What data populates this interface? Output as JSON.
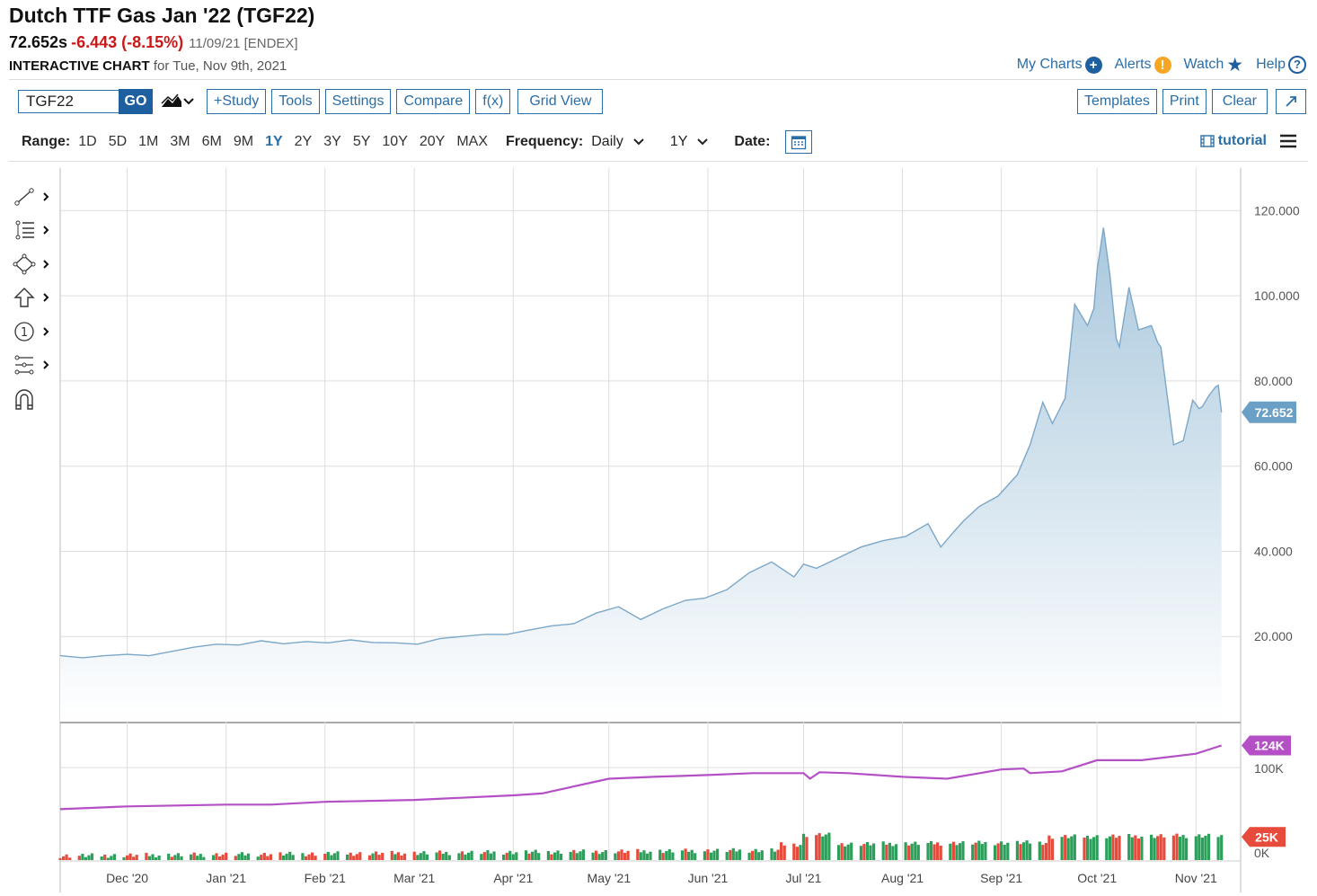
{
  "header": {
    "title": "Dutch TTF Gas Jan '22 (TGF22)",
    "last": "72.652s",
    "change": "-6.443 (-8.15%)",
    "meta": "11/09/21 [ENDEX]",
    "chart_label": "INTERACTIVE CHART",
    "for_text": "for Tue, Nov 9th, 2021"
  },
  "top_links": {
    "my_charts": "My Charts",
    "alerts": "Alerts",
    "watch": "Watch",
    "help": "Help"
  },
  "toolbar": {
    "symbol": "TGF22",
    "go": "GO",
    "study": "+Study",
    "tools": "Tools",
    "settings": "Settings",
    "compare": "Compare",
    "fx": "f(x)",
    "grid_view": "Grid View",
    "templates": "Templates",
    "print": "Print",
    "clear": "Clear"
  },
  "range_bar": {
    "range_label": "Range:",
    "ranges": [
      "1D",
      "5D",
      "1M",
      "3M",
      "6M",
      "9M",
      "1Y",
      "2Y",
      "3Y",
      "5Y",
      "10Y",
      "20Y",
      "MAX"
    ],
    "selected": "1Y",
    "frequency_label": "Frequency:",
    "frequency": "Daily",
    "period": "1Y",
    "date_label": "Date:",
    "tutorial": "tutorial"
  },
  "icons": {
    "drawing_tools": [
      "line-tool-icon",
      "fib-tool-icon",
      "shape-tool-icon",
      "arrow-tool-icon",
      "annotation-tool-icon",
      "measure-tool-icon",
      "magnet-icon"
    ],
    "calendar": "calendar-icon",
    "menu": "hamburger-menu-icon"
  },
  "colors": {
    "accent": "#2a6ea8",
    "price_line": "#7ba7c9",
    "area_fill_top": "#a9c8dd",
    "open_interest": "#b44fc6",
    "volume_up": "#2ca05a",
    "volume_down": "#e64b3c",
    "last_badge": "#6a9fc6",
    "volume_badge": "#e64b3c",
    "change_negative": "#c91818"
  },
  "chart_data": {
    "type": "area",
    "x_ticks": [
      "Dec '20",
      "Jan '21",
      "Feb '21",
      "Mar '21",
      "Apr '21",
      "May '21",
      "Jun '21",
      "Jul '21",
      "Aug '21",
      "Sep '21",
      "Oct '21",
      "Nov '21"
    ],
    "ylim": [
      0,
      130
    ],
    "y_ticks": [
      "20.000",
      "40.000",
      "60.000",
      "80.000",
      "100.000",
      "120.000"
    ],
    "y_tick_values": [
      20,
      40,
      60,
      80,
      100,
      120
    ],
    "last_value_label": "72.652",
    "grid": true,
    "price": {
      "x": [
        "2020-11-10",
        "2020-11-17",
        "2020-11-24",
        "2020-12-01",
        "2020-12-08",
        "2020-12-15",
        "2020-12-22",
        "2020-12-29",
        "2021-01-05",
        "2021-01-12",
        "2021-01-19",
        "2021-01-26",
        "2021-02-02",
        "2021-02-09",
        "2021-02-16",
        "2021-02-23",
        "2021-03-02",
        "2021-03-09",
        "2021-03-16",
        "2021-03-23",
        "2021-03-30",
        "2021-04-06",
        "2021-04-13",
        "2021-04-20",
        "2021-04-27",
        "2021-05-04",
        "2021-05-11",
        "2021-05-18",
        "2021-05-25",
        "2021-05-31",
        "2021-06-07",
        "2021-06-14",
        "2021-06-21",
        "2021-06-28",
        "2021-07-01",
        "2021-07-05",
        "2021-07-12",
        "2021-07-19",
        "2021-07-26",
        "2021-08-02",
        "2021-08-09",
        "2021-08-13",
        "2021-08-17",
        "2021-08-20",
        "2021-08-25",
        "2021-08-31",
        "2021-09-06",
        "2021-09-10",
        "2021-09-14",
        "2021-09-17",
        "2021-09-21",
        "2021-09-24",
        "2021-09-28",
        "2021-09-30",
        "2021-10-01",
        "2021-10-03",
        "2021-10-05",
        "2021-10-07",
        "2021-10-08",
        "2021-10-11",
        "2021-10-14",
        "2021-10-18",
        "2021-10-20",
        "2021-10-21",
        "2021-10-25",
        "2021-10-28",
        "2021-10-31",
        "2021-11-02",
        "2021-11-03",
        "2021-11-05",
        "2021-11-07",
        "2021-11-08",
        "2021-11-09"
      ],
      "y": [
        15.5,
        15.0,
        15.5,
        15.8,
        15.5,
        16.5,
        17.5,
        18.2,
        18.0,
        19.0,
        18.3,
        18.8,
        18.5,
        19.2,
        18.6,
        18.5,
        18.2,
        19.5,
        20.0,
        20.5,
        20.5,
        21.5,
        22.5,
        23.0,
        25.5,
        27.0,
        24.0,
        26.5,
        28.5,
        29.0,
        31.0,
        35.0,
        37.5,
        34.0,
        37.0,
        36.0,
        38.5,
        41.0,
        42.5,
        43.5,
        46.5,
        41.0,
        44.5,
        47.0,
        50.5,
        53.0,
        58.0,
        65.0,
        75.0,
        70.0,
        76.0,
        98.0,
        93.0,
        97.0,
        106.0,
        116.0,
        105.0,
        90.0,
        88.0,
        102.0,
        92.0,
        93.0,
        89.0,
        88.0,
        65.0,
        66.0,
        75.5,
        73.5,
        74.0,
        76.5,
        78.5,
        79.0,
        72.65
      ]
    },
    "open_interest": {
      "label": "124K",
      "tick": "100K",
      "ylim": [
        0,
        140
      ],
      "x": [
        "2020-11-10",
        "2020-12-01",
        "2021-01-01",
        "2021-01-15",
        "2021-02-01",
        "2021-03-01",
        "2021-04-01",
        "2021-04-10",
        "2021-05-01",
        "2021-05-15",
        "2021-06-01",
        "2021-06-15",
        "2021-07-01",
        "2021-07-03",
        "2021-07-06",
        "2021-07-15",
        "2021-08-01",
        "2021-08-15",
        "2021-09-01",
        "2021-09-08",
        "2021-09-10",
        "2021-09-20",
        "2021-10-01",
        "2021-10-15",
        "2021-11-01",
        "2021-11-09"
      ],
      "y": [
        55,
        58,
        60,
        60,
        63,
        65,
        70,
        72,
        88,
        90,
        92,
        94,
        94,
        88,
        95,
        94,
        90,
        88,
        98,
        99,
        94,
        96,
        108,
        108,
        115,
        124
      ]
    },
    "volume": {
      "label": "25K",
      "tick": "0K",
      "ylim": [
        0,
        140
      ]
    }
  }
}
